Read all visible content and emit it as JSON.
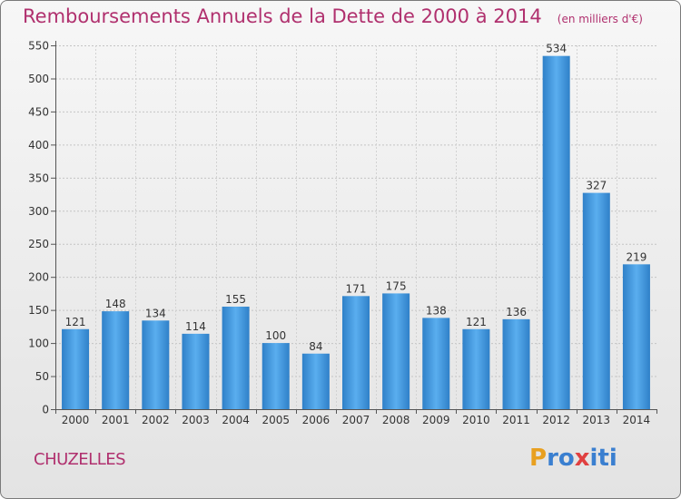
{
  "chart_data": {
    "type": "bar",
    "title": "Remboursements Annuels de la Dette de 2000 à 2014",
    "subtitle": "(en milliers d'€)",
    "categories": [
      "2000",
      "2001",
      "2002",
      "2003",
      "2004",
      "2005",
      "2006",
      "2007",
      "2008",
      "2009",
      "2010",
      "2011",
      "2012",
      "2013",
      "2014"
    ],
    "values": [
      121,
      148,
      134,
      114,
      155,
      100,
      84,
      171,
      175,
      138,
      121,
      136,
      534,
      327,
      219
    ],
    "ylim": [
      0,
      550
    ],
    "yticks": [
      0,
      50,
      100,
      150,
      200,
      250,
      300,
      350,
      400,
      450,
      500,
      550
    ],
    "grid": true,
    "legend": "none",
    "bar_color": "#3a8fd9"
  },
  "location": "CHUZELLES",
  "logo": {
    "text": "Proxiti",
    "colors": [
      "#e8a020",
      "#3a7fd0",
      "#3a7fd0",
      "#e04040",
      "#3a7fd0",
      "#3a7fd0",
      "#3a7fd0"
    ]
  }
}
